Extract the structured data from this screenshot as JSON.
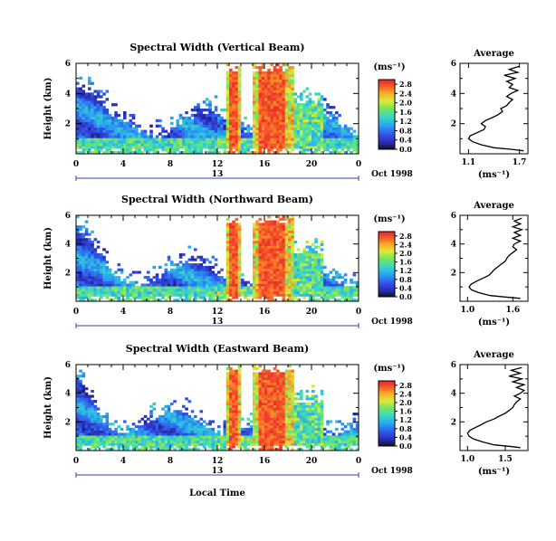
{
  "figure": {
    "xlabel": "Local Time",
    "date_label": "Oct 1998",
    "day_label": "13",
    "colorbar_unit": "(ms⁻¹)",
    "avg_title": "Average",
    "avg_xlabel": "(ms⁻¹)"
  },
  "chart_data": [
    {
      "type": "heatmap",
      "title": "Spectral Width (Vertical Beam)",
      "ylabel": "Height (km)",
      "x_ticks": [
        "0",
        "4",
        "8",
        "12",
        "16",
        "20",
        "0"
      ],
      "y_ticks": [
        "2",
        "4",
        "6"
      ],
      "xlim": [
        0,
        24
      ],
      "ylim": [
        0,
        6
      ],
      "colorbar": {
        "ticks": [
          "0.0",
          "0.4",
          "0.8",
          "1.2",
          "1.6",
          "2.0",
          "2.4",
          "2.8"
        ],
        "range": [
          0,
          3.0
        ]
      },
      "average_profile": {
        "x_ticks": [
          "1.1",
          "1.7"
        ],
        "xlim": [
          1.0,
          1.8
        ],
        "y_ticks": [
          "2",
          "4",
          "6"
        ],
        "ylim": [
          0,
          6
        ],
        "points": [
          [
            1.75,
            0.2
          ],
          [
            1.6,
            0.3
          ],
          [
            1.4,
            0.4
          ],
          [
            1.25,
            0.6
          ],
          [
            1.15,
            0.8
          ],
          [
            1.1,
            1.0
          ],
          [
            1.12,
            1.2
          ],
          [
            1.2,
            1.4
          ],
          [
            1.28,
            1.6
          ],
          [
            1.3,
            1.8
          ],
          [
            1.25,
            2.0
          ],
          [
            1.3,
            2.2
          ],
          [
            1.38,
            2.4
          ],
          [
            1.45,
            2.6
          ],
          [
            1.5,
            2.8
          ],
          [
            1.48,
            3.0
          ],
          [
            1.55,
            3.2
          ],
          [
            1.58,
            3.4
          ],
          [
            1.62,
            3.6
          ],
          [
            1.55,
            3.8
          ],
          [
            1.6,
            4.0
          ],
          [
            1.68,
            4.2
          ],
          [
            1.58,
            4.4
          ],
          [
            1.62,
            4.6
          ],
          [
            1.55,
            4.8
          ],
          [
            1.65,
            5.0
          ],
          [
            1.52,
            5.2
          ],
          [
            1.68,
            5.4
          ],
          [
            1.58,
            5.6
          ],
          [
            1.7,
            5.8
          ]
        ]
      }
    },
    {
      "type": "heatmap",
      "title": "Spectral Width (Northward Beam)",
      "ylabel": "Height (km)",
      "x_ticks": [
        "0",
        "4",
        "8",
        "12",
        "16",
        "20",
        "0"
      ],
      "y_ticks": [
        "2",
        "4",
        "6"
      ],
      "xlim": [
        0,
        24
      ],
      "ylim": [
        0,
        6
      ],
      "colorbar": {
        "ticks": [
          "0.0",
          "0.4",
          "0.8",
          "1.2",
          "1.6",
          "2.0",
          "2.4",
          "2.8"
        ],
        "range": [
          0,
          3.0
        ]
      },
      "average_profile": {
        "x_ticks": [
          "1.0",
          "1.6"
        ],
        "xlim": [
          0.9,
          1.8
        ],
        "y_ticks": [
          "2",
          "4",
          "6"
        ],
        "ylim": [
          0,
          6
        ],
        "points": [
          [
            1.7,
            0.2
          ],
          [
            1.5,
            0.3
          ],
          [
            1.3,
            0.4
          ],
          [
            1.15,
            0.6
          ],
          [
            1.05,
            0.8
          ],
          [
            1.02,
            1.0
          ],
          [
            1.05,
            1.2
          ],
          [
            1.12,
            1.4
          ],
          [
            1.2,
            1.6
          ],
          [
            1.28,
            1.8
          ],
          [
            1.32,
            2.0
          ],
          [
            1.35,
            2.2
          ],
          [
            1.4,
            2.4
          ],
          [
            1.45,
            2.6
          ],
          [
            1.5,
            2.8
          ],
          [
            1.52,
            3.0
          ],
          [
            1.55,
            3.2
          ],
          [
            1.6,
            3.4
          ],
          [
            1.65,
            3.6
          ],
          [
            1.6,
            3.8
          ],
          [
            1.62,
            4.0
          ],
          [
            1.7,
            4.2
          ],
          [
            1.6,
            4.4
          ],
          [
            1.7,
            4.6
          ],
          [
            1.62,
            4.8
          ],
          [
            1.72,
            5.0
          ],
          [
            1.6,
            5.2
          ],
          [
            1.7,
            5.4
          ],
          [
            1.62,
            5.6
          ],
          [
            1.72,
            5.8
          ]
        ]
      }
    },
    {
      "type": "heatmap",
      "title": "Spectral Width (Eastward Beam)",
      "ylabel": "Height (km)",
      "x_ticks": [
        "0",
        "4",
        "8",
        "12",
        "16",
        "20",
        "0"
      ],
      "y_ticks": [
        "2",
        "4",
        "6"
      ],
      "xlim": [
        0,
        24
      ],
      "ylim": [
        0,
        6
      ],
      "colorbar": {
        "ticks": [
          "0.0",
          "0.4",
          "0.8",
          "1.2",
          "1.6",
          "2.0",
          "2.4",
          "2.8"
        ],
        "range": [
          0,
          3.0
        ]
      },
      "average_profile": {
        "x_ticks": [
          "1.0",
          "1.5"
        ],
        "xlim": [
          0.9,
          1.8
        ],
        "y_ticks": [
          "2",
          "4",
          "6"
        ],
        "ylim": [
          0,
          6
        ],
        "points": [
          [
            1.7,
            0.2
          ],
          [
            1.55,
            0.3
          ],
          [
            1.35,
            0.4
          ],
          [
            1.2,
            0.6
          ],
          [
            1.08,
            0.8
          ],
          [
            1.02,
            1.0
          ],
          [
            1.0,
            1.2
          ],
          [
            1.03,
            1.4
          ],
          [
            1.1,
            1.6
          ],
          [
            1.18,
            1.8
          ],
          [
            1.25,
            2.0
          ],
          [
            1.35,
            2.2
          ],
          [
            1.42,
            2.4
          ],
          [
            1.5,
            2.6
          ],
          [
            1.55,
            2.8
          ],
          [
            1.6,
            3.0
          ],
          [
            1.62,
            3.2
          ],
          [
            1.65,
            3.4
          ],
          [
            1.7,
            3.6
          ],
          [
            1.62,
            3.8
          ],
          [
            1.7,
            4.0
          ],
          [
            1.75,
            4.2
          ],
          [
            1.65,
            4.4
          ],
          [
            1.75,
            4.6
          ],
          [
            1.6,
            4.8
          ],
          [
            1.72,
            5.0
          ],
          [
            1.55,
            5.2
          ],
          [
            1.7,
            5.4
          ],
          [
            1.58,
            5.6
          ],
          [
            1.72,
            5.8
          ]
        ]
      }
    }
  ]
}
